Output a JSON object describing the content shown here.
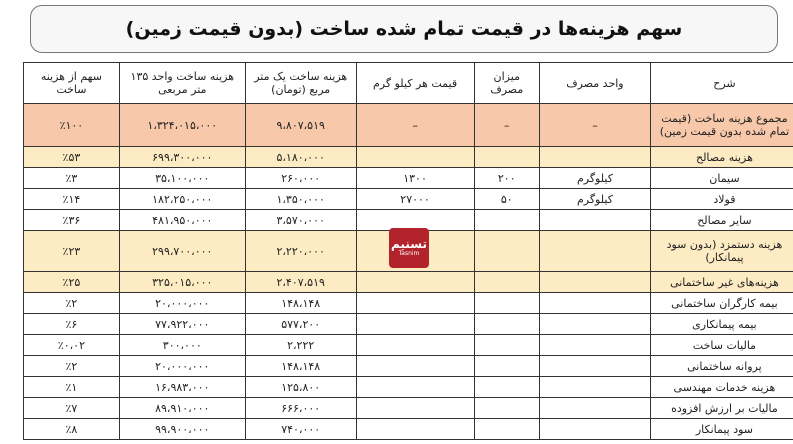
{
  "title": "سهم هزینه‌ها در قیمت تمام شده ساخت (بدون قیمت زمین)",
  "headers": [
    "شرح",
    "واحد مصرف",
    "میزان مصرف",
    "قیمت هر کیلو گرم",
    "هزینه ساخت یک متر مربع (تومان)",
    "هزینه ساخت واحد ۱۳۵ متر مربعی",
    "سهم از هزینه ساخت"
  ],
  "rows": [
    {
      "type": "total",
      "cells": [
        "مجموع هزینه ساخت (قیمت تمام شده بدون قیمت زمین)",
        "–",
        "–",
        "–",
        "۹،۸۰۷،۵۱۹",
        "۱،۳۲۴،۰۱۵،۰۰۰",
        "٪۱۰۰"
      ]
    },
    {
      "type": "sub",
      "cells": [
        "هزینه مصالح",
        "",
        "",
        "",
        "۵،۱۸۰،۰۰۰",
        "۶۹۹،۳۰۰،۰۰۰",
        "٪۵۳"
      ]
    },
    {
      "type": "row",
      "cells": [
        "سیمان",
        "کیلوگرم",
        "۲۰۰",
        "۱۳۰۰",
        "۲۶۰،۰۰۰",
        "۳۵،۱۰۰،۰۰۰",
        "٪۳"
      ]
    },
    {
      "type": "row",
      "cells": [
        "قولاد",
        "کیلوگرم",
        "۵۰",
        "۲۷۰۰۰",
        "۱،۳۵۰،۰۰۰",
        "۱۸۲،۲۵۰،۰۰۰",
        "٪۱۴"
      ]
    },
    {
      "type": "row",
      "cells": [
        "سایر مصالح",
        "",
        "",
        "",
        "۳،۵۷۰،۰۰۰",
        "۴۸۱،۹۵۰،۰۰۰",
        "٪۳۶"
      ]
    },
    {
      "type": "sub labor",
      "cells": [
        "هزینه دستمزد (بدون سود پیمانکار)",
        "",
        "",
        "",
        "۲،۲۲۰،۰۰۰",
        "۲۹۹،۷۰۰،۰۰۰",
        "٪۲۳"
      ]
    },
    {
      "type": "sub",
      "cells": [
        "هزینه‌های غیر ساختمانی",
        "",
        "",
        "",
        "۲،۴۰۷،۵۱۹",
        "۳۲۵،۰۱۵،۰۰۰",
        "٪۲۵"
      ]
    },
    {
      "type": "row",
      "cells": [
        "بیمه کارگران ساختمانی",
        "",
        "",
        "",
        "۱۴۸،۱۴۸",
        "۲۰،۰۰۰،۰۰۰",
        "٪۲"
      ]
    },
    {
      "type": "row",
      "cells": [
        "بیمه پیمانکاری",
        "",
        "",
        "",
        "۵۷۷،۲۰۰",
        "۷۷،۹۲۲،۰۰۰",
        "٪۶"
      ]
    },
    {
      "type": "row",
      "cells": [
        "مالیات ساخت",
        "",
        "",
        "",
        "۲،۲۲۲",
        "۳۰۰،۰۰۰",
        "٪۰،۰۲"
      ]
    },
    {
      "type": "row",
      "cells": [
        "پروانه ساختمانی",
        "",
        "",
        "",
        "۱۴۸،۱۴۸",
        "۲۰،۰۰۰،۰۰۰",
        "٪۲"
      ]
    },
    {
      "type": "row",
      "cells": [
        "هزینه خدمات مهندسی",
        "",
        "",
        "",
        "۱۲۵،۸۰۰",
        "۱۶،۹۸۳،۰۰۰",
        "٪۱"
      ]
    },
    {
      "type": "row",
      "cells": [
        "مالیات بر ارزش افزوده",
        "",
        "",
        "",
        "۶۶۶،۰۰۰",
        "۸۹،۹۱۰،۰۰۰",
        "٪۷"
      ]
    },
    {
      "type": "row",
      "cells": [
        "سود پیمانکار",
        "",
        "",
        "",
        "۷۴۰،۰۰۰",
        "۹۹،۹۰۰،۰۰۰",
        "٪۸"
      ]
    }
  ],
  "watermark": {
    "text": "تسنیم",
    "latin": "Tasnim",
    "color": "#b3232c"
  }
}
